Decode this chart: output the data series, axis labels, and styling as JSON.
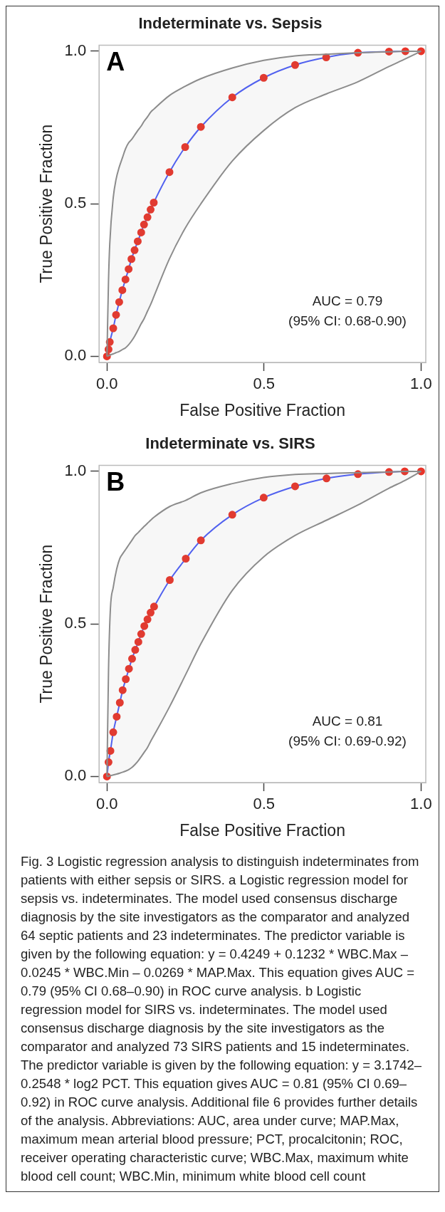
{
  "chart_data": [
    {
      "type": "line",
      "title": "Indeterminate vs. Sepsis",
      "xlabel": "False Positive Fraction",
      "ylabel": "True Positive Fraction",
      "xlim": [
        -0.025,
        1.015
      ],
      "ylim": [
        -0.02,
        1.02
      ],
      "xticks": [
        {
          "value": 0,
          "label": "0.0"
        },
        {
          "value": 0.5,
          "label": "0.5"
        },
        {
          "value": 1,
          "label": "1.0"
        }
      ],
      "yticks": [
        {
          "value": 0,
          "label": "0.0"
        },
        {
          "value": 0.5,
          "label": "0.5"
        },
        {
          "value": 1,
          "label": "1.0"
        }
      ],
      "grid": false,
      "legend": false,
      "annotations": [
        "A",
        "AUC = 0.79",
        "(95% CI: 0.68-0.90)"
      ],
      "series": [
        {
          "color": "#4d5ef7",
          "marker": "circle",
          "x": [
            0,
            0.005,
            0.009,
            0.02,
            0.029,
            0.039,
            0.049,
            0.059,
            0.069,
            0.078,
            0.088,
            0.098,
            0.109,
            0.118,
            0.129,
            0.139,
            0.149,
            0.199,
            0.249,
            0.299,
            0.399,
            0.499,
            0.599,
            0.698,
            0.799,
            0.898,
            0.95,
            1
          ],
          "values": [
            0,
            0.023,
            0.047,
            0.092,
            0.136,
            0.178,
            0.217,
            0.252,
            0.286,
            0.319,
            0.348,
            0.377,
            0.406,
            0.432,
            0.456,
            0.481,
            0.504,
            0.604,
            0.686,
            0.752,
            0.849,
            0.913,
            0.955,
            0.98,
            0.995,
            0.999,
            1,
            1
          ],
          "upper": [
            0,
            0.25,
            0.37,
            0.52,
            0.58,
            0.62,
            0.65,
            0.68,
            0.7,
            0.71,
            0.725,
            0.74,
            0.755,
            0.77,
            0.785,
            0.8,
            0.81,
            0.855,
            0.885,
            0.91,
            0.945,
            0.97,
            0.985,
            0.99,
            0.995,
            0.998,
            1,
            1
          ],
          "lower": [
            0,
            0.002,
            0.004,
            0.008,
            0.012,
            0.016,
            0.022,
            0.028,
            0.038,
            0.05,
            0.066,
            0.085,
            0.107,
            0.123,
            0.148,
            0.17,
            0.195,
            0.32,
            0.42,
            0.5,
            0.64,
            0.74,
            0.815,
            0.86,
            0.9,
            0.95,
            0.975,
            1
          ],
          "colors": [
            "#e8352a",
            "#e8352a",
            "#e8352a",
            "#e8352a",
            "#e8352a",
            "#e8352a",
            "#e8352a",
            "#e8352a",
            "#e8352a",
            "#e8352a",
            "#e8352a",
            "#e8352a",
            "#e8352a",
            "#e8352a",
            "#e8352a",
            "#e8352a",
            "#e8352a",
            "#e8352a",
            "#e8352a",
            "#e8352a",
            "#e8352a",
            "#e8352a",
            "#e8352a",
            "#e8352a",
            "#e8352a",
            "#e8352a",
            "#e8352a",
            "#e8352a"
          ]
        }
      ]
    },
    {
      "type": "line",
      "title": "Indeterminate vs. SIRS",
      "xlabel": "False Positive Fraction",
      "ylabel": "True Positive Fraction",
      "xlim": [
        -0.025,
        1.015
      ],
      "ylim": [
        -0.02,
        1.02
      ],
      "xticks": [
        {
          "value": 0,
          "label": "0.0"
        },
        {
          "value": 0.5,
          "label": "0.5"
        },
        {
          "value": 1,
          "label": "1.0"
        }
      ],
      "yticks": [
        {
          "value": 0,
          "label": "0.0"
        },
        {
          "value": 0.5,
          "label": "0.5"
        },
        {
          "value": 1,
          "label": "1.0"
        }
      ],
      "grid": false,
      "legend": false,
      "annotations": [
        "B",
        "AUC = 0.81",
        "(95% CI: 0.69-0.92)",
        "Fig. 3 Logistic regression analysis to distinguish indeterminates from patients with either sepsis or SIRS. a Logistic regression model for sepsis vs. indeterminates. The model used consensus discharge diagnosis by the site investigators as the comparator and analyzed 64 septic patients and 23 indeterminates. The predictor variable is given by the following equation: y = 0.4249 + 0.1232 * WBC.Max – 0.0245 * WBC.Min – 0.0269 * MAP.Max. This equation gives AUC = 0.79 (95% CI 0.68–0.90) in ROC curve analysis. b Logistic regression model for SIRS vs. indeterminates. The model used consensus discharge diagnosis by the site investigators as the comparator and analyzed 73 SIRS patients and 15 indeterminates. The predictor variable is given by the following equation: y = 3.1742–0.2548 * log2 PCT. This equation gives AUC = 0.81 (95% CI 0.69–0.92) in ROC curve analysis. Additional file 6 provides further details of the analysis. Abbreviations: AUC, area under curve; MAP.Max, maximum mean arterial blood pressure; PCT, procalcitonin; ROC, receiver operating characteristic curve; WBC.Max, maximum white blood cell count; WBC.Min, minimum white blood cell count"
      ],
      "series": [
        {
          "color": "#4d5ef7",
          "marker": "circle",
          "x": [
            0,
            0.005,
            0.011,
            0.02,
            0.031,
            0.041,
            0.05,
            0.06,
            0.07,
            0.08,
            0.09,
            0.1,
            0.109,
            0.119,
            0.129,
            0.139,
            0.15,
            0.2,
            0.251,
            0.299,
            0.399,
            0.499,
            0.599,
            0.699,
            0.799,
            0.898,
            0.948,
            1
          ],
          "values": [
            0,
            0.047,
            0.084,
            0.145,
            0.196,
            0.242,
            0.283,
            0.319,
            0.353,
            0.386,
            0.415,
            0.441,
            0.467,
            0.493,
            0.515,
            0.537,
            0.557,
            0.644,
            0.714,
            0.774,
            0.858,
            0.914,
            0.951,
            0.977,
            0.991,
            0.998,
            1,
            1
          ],
          "upper": [
            0,
            0.35,
            0.55,
            0.62,
            0.68,
            0.715,
            0.73,
            0.745,
            0.76,
            0.775,
            0.79,
            0.8,
            0.81,
            0.82,
            0.83,
            0.84,
            0.85,
            0.885,
            0.905,
            0.93,
            0.96,
            0.98,
            0.99,
            0.993,
            0.996,
            0.998,
            1,
            1
          ],
          "lower": [
            0,
            0.001,
            0.003,
            0.005,
            0.008,
            0.011,
            0.014,
            0.018,
            0.023,
            0.03,
            0.04,
            0.052,
            0.065,
            0.08,
            0.095,
            0.115,
            0.135,
            0.23,
            0.335,
            0.435,
            0.61,
            0.72,
            0.79,
            0.84,
            0.89,
            0.945,
            0.97,
            1
          ],
          "colors": [
            "#e8352a",
            "#e8352a",
            "#e8352a",
            "#e8352a",
            "#e8352a",
            "#e8352a",
            "#e8352a",
            "#e8352a",
            "#e8352a",
            "#e8352a",
            "#e8352a",
            "#e8352a",
            "#e8352a",
            "#e8352a",
            "#e8352a",
            "#e8352a",
            "#e8352a",
            "#e8352a",
            "#e8352a",
            "#e8352a",
            "#e8352a",
            "#e8352a",
            "#e8352a",
            "#e8352a",
            "#e8352a",
            "#e8352a",
            "#e8352a",
            "#e8352a"
          ]
        }
      ]
    }
  ]
}
